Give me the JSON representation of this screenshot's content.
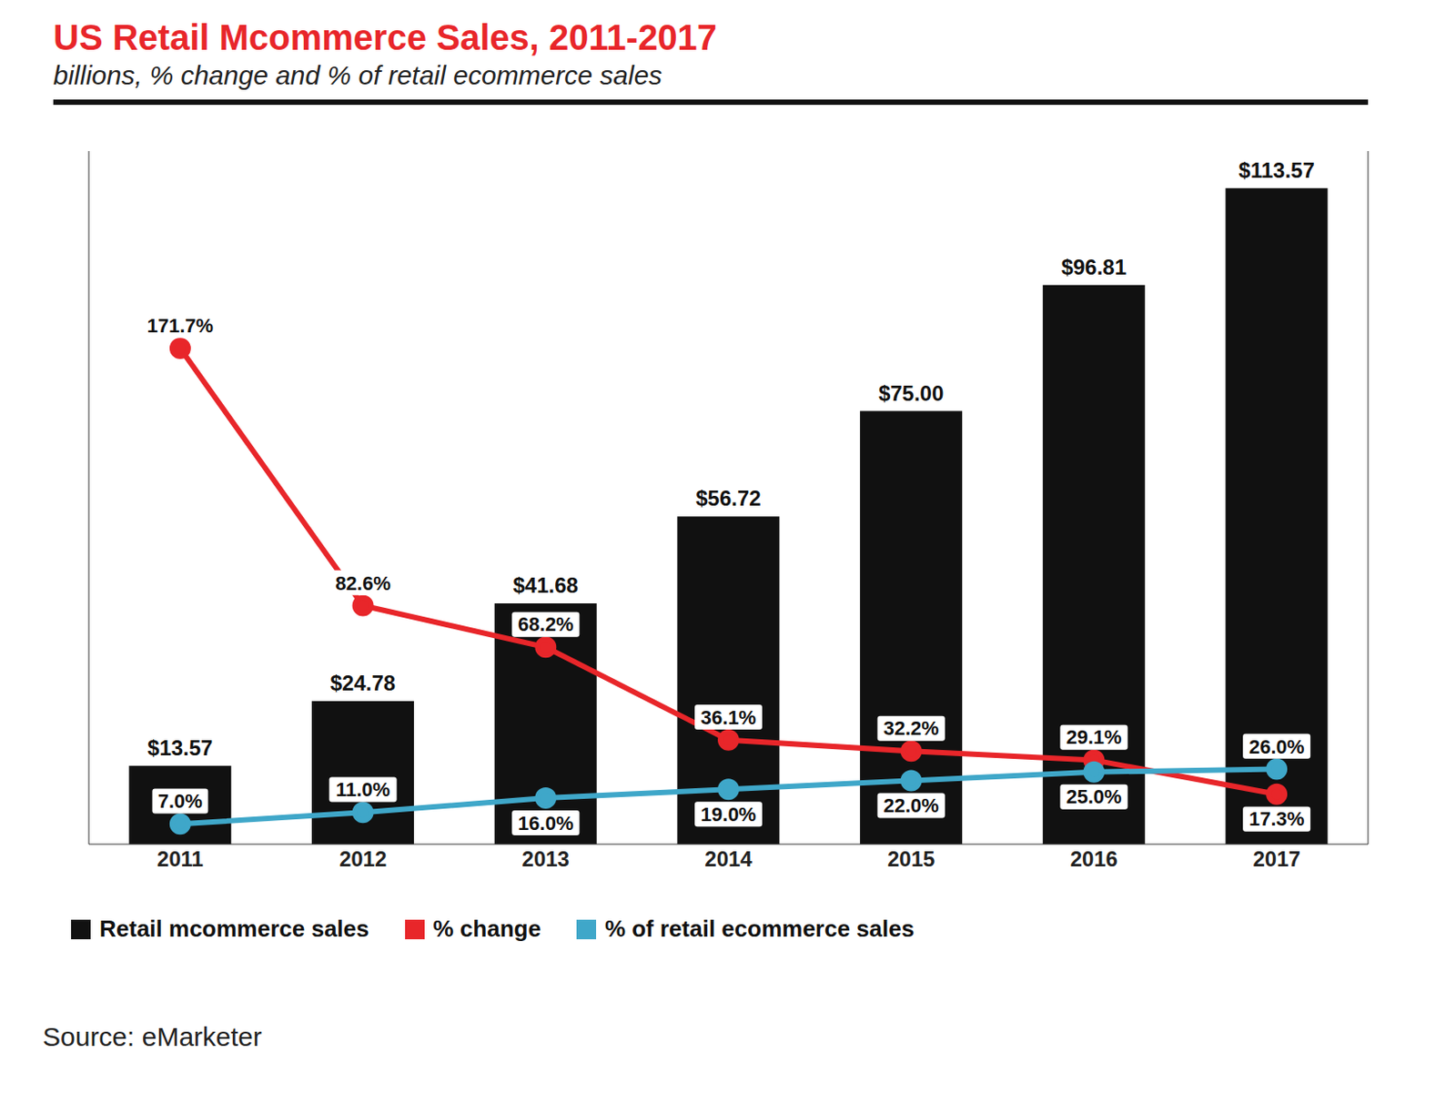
{
  "chart_data": {
    "type": "bar",
    "title": "US Retail Mcommerce Sales, 2011-2017",
    "subtitle": "billions, % change and % of retail ecommerce sales",
    "categories": [
      "2011",
      "2012",
      "2013",
      "2014",
      "2015",
      "2016",
      "2017"
    ],
    "series": [
      {
        "name": "Retail mcommerce sales",
        "type": "bar",
        "color": "#111111",
        "values": [
          13.57,
          24.78,
          41.68,
          56.72,
          75.0,
          96.81,
          113.57
        ],
        "value_labels": [
          "$13.57",
          "$24.78",
          "$41.68",
          "$56.72",
          "$75.00",
          "$96.81",
          "$113.57"
        ]
      },
      {
        "name": "% change",
        "type": "line",
        "color": "#e8262a",
        "marker": "circle",
        "axis": "y2",
        "values": [
          171.7,
          82.6,
          68.2,
          36.1,
          32.2,
          29.1,
          17.3
        ],
        "value_labels": [
          "171.7%",
          "82.6%",
          "68.2%",
          "36.1%",
          "32.2%",
          "29.1%",
          "17.3%"
        ]
      },
      {
        "name": "% of retail ecommerce sales",
        "type": "line",
        "color": "#3fa7c9",
        "marker": "circle",
        "axis": "y2",
        "values": [
          7.0,
          11.0,
          16.0,
          19.0,
          22.0,
          25.0,
          26.0
        ],
        "value_labels": [
          "7.0%",
          "11.0%",
          "16.0%",
          "19.0%",
          "22.0%",
          "25.0%",
          "26.0%"
        ]
      }
    ],
    "ylim": [
      0,
      120
    ],
    "yticks": [],
    "y2lim": [
      0,
      240
    ],
    "y2ticks": [],
    "tick_labels": "x",
    "data_labels": true,
    "grid": false,
    "legend": "bottom",
    "annotations": [
      "Source: eMarketer"
    ]
  }
}
